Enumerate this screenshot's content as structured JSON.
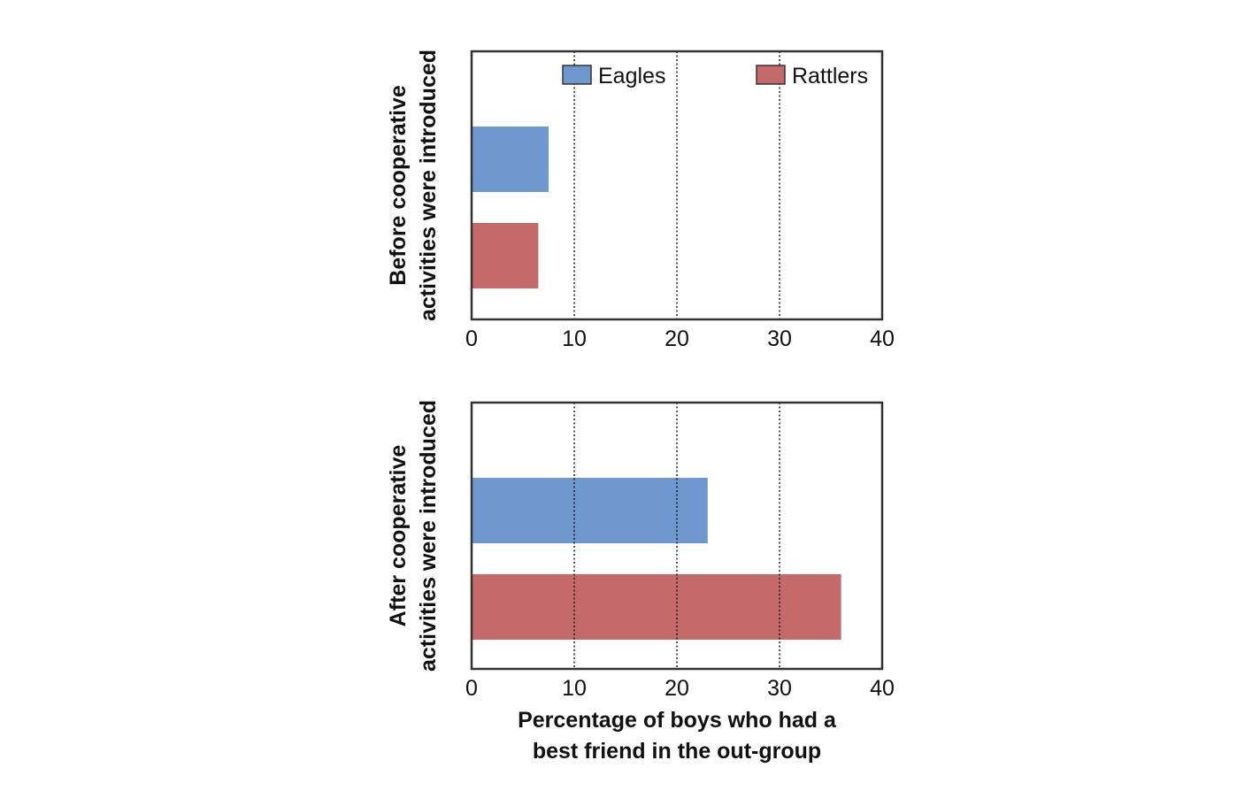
{
  "colors": {
    "eagles": "#6f98cf",
    "rattlers": "#c46a6a",
    "axis": "#333333",
    "grid": "#111111"
  },
  "legend": [
    {
      "name": "Eagles",
      "color": "#6f98cf"
    },
    {
      "name": "Rattlers",
      "color": "#c46a6a"
    }
  ],
  "xlabel_line1": "Percentage of boys who had a",
  "xlabel_line2": "best friend in the out-group",
  "chart_data": [
    {
      "type": "bar",
      "orientation": "horizontal",
      "ylabel_line1": "Before cooperative",
      "ylabel_line2": "activities were introduced",
      "series": [
        {
          "name": "Eagles",
          "values": [
            7.5
          ]
        },
        {
          "name": "Rattlers",
          "values": [
            6.5
          ]
        }
      ],
      "xlim": [
        0,
        40
      ],
      "xticks": [
        "0",
        "10",
        "20",
        "30",
        "40"
      ],
      "grid": "dotted vertical at 10, 20, 30",
      "legend_position": "top"
    },
    {
      "type": "bar",
      "orientation": "horizontal",
      "ylabel_line1": "After cooperative",
      "ylabel_line2": "activities were introduced",
      "series": [
        {
          "name": "Eagles",
          "values": [
            23
          ]
        },
        {
          "name": "Rattlers",
          "values": [
            36
          ]
        }
      ],
      "xlim": [
        0,
        40
      ],
      "xticks": [
        "0",
        "10",
        "20",
        "30",
        "40"
      ],
      "grid": "dotted vertical at 10, 20, 30"
    }
  ]
}
